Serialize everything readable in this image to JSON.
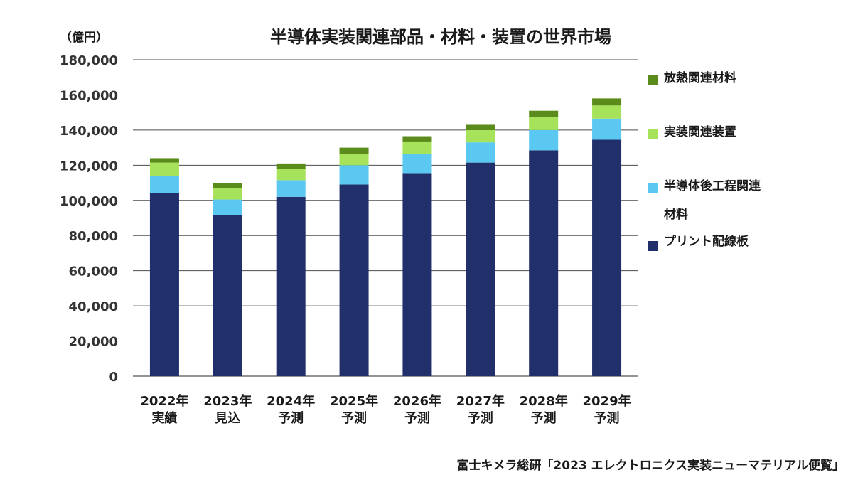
{
  "unit_label": "（億円）",
  "source": "富士キメラ総研「2023 エレクトロニクス実装ニューマテリアル便覧」",
  "chart_data": {
    "type": "bar",
    "stacked": true,
    "title": "半導体実装関連部品・材料・装置の世界市場",
    "categories": [
      [
        "2022年",
        "実績"
      ],
      [
        "2023年",
        "見込"
      ],
      [
        "2024年",
        "予測"
      ],
      [
        "2025年",
        "予測"
      ],
      [
        "2026年",
        "予測"
      ],
      [
        "2027年",
        "予測"
      ],
      [
        "2028年",
        "予測"
      ],
      [
        "2029年",
        "予測"
      ]
    ],
    "ylim": [
      0,
      180000
    ],
    "yticks": [
      "0",
      "20,000",
      "40,000",
      "60,000",
      "80,000",
      "100,000",
      "120,000",
      "140,000",
      "160,000",
      "180,000"
    ],
    "grid": true,
    "legend_position": "right",
    "series": [
      {
        "name": "プリント配線板",
        "color": "#21306a",
        "values": [
          104000,
          91500,
          102000,
          109000,
          115500,
          121500,
          128500,
          134500
        ]
      },
      {
        "name": "半導体後工程関連材料",
        "color": "#5bc8f1",
        "values": [
          10000,
          9000,
          9500,
          11000,
          11000,
          11500,
          11500,
          12000
        ]
      },
      {
        "name": "実装関連装置",
        "color": "#a6e25a",
        "values": [
          7500,
          6500,
          6500,
          6500,
          7000,
          7000,
          7500,
          7500
        ]
      },
      {
        "name": "放熱関連材料",
        "color": "#5b8c1b",
        "values": [
          2500,
          3000,
          3000,
          3500,
          3000,
          3000,
          3500,
          4000
        ]
      }
    ],
    "legend": [
      {
        "lines": [
          "放熱関連材料"
        ],
        "color": "#5b8c1b"
      },
      {
        "lines": [
          "実装関連装置"
        ],
        "color": "#a6e25a"
      },
      {
        "lines": [
          "半導体後工程関連",
          "材料"
        ],
        "color": "#5bc8f1"
      },
      {
        "lines": [
          "プリント配線板"
        ],
        "color": "#21306a"
      }
    ]
  }
}
